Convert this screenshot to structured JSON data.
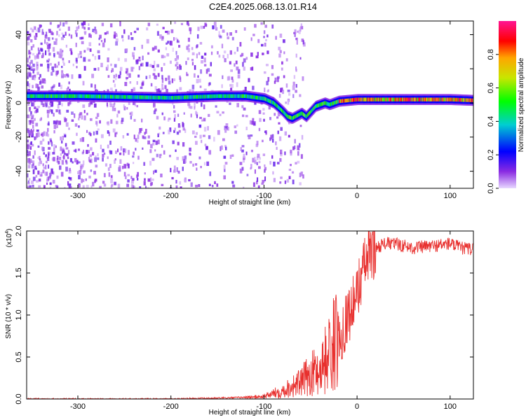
{
  "title": "C2E4.2025.068.13.01.R14",
  "colors": {
    "snr_line": "#e8302e",
    "colorbar_top": "#ff1493",
    "colorbar_low": "#e8d8ff"
  },
  "chart_data": [
    {
      "type": "heatmap",
      "xlabel": "Height of straight line (km)",
      "ylabel": "Frequency (Hz)",
      "xlim": [
        -355,
        125
      ],
      "ylim": [
        -50,
        48
      ],
      "xticks": [
        -300,
        -200,
        -100,
        0,
        100
      ],
      "yticks": [
        -40,
        -20,
        0,
        20,
        40
      ],
      "xtick_labels": [
        "-300",
        "-200",
        "-100",
        "0",
        "100"
      ],
      "ytick_labels": [
        "-40",
        "-20",
        "0",
        "20",
        "40"
      ],
      "ridge": {
        "x": [
          -350,
          -300,
          -250,
          -200,
          -150,
          -120,
          -100,
          -90,
          -80,
          -75,
          -70,
          -60,
          -55,
          -50,
          -45,
          -40,
          -35,
          -30,
          -25,
          -20,
          -10,
          0,
          50,
          100,
          125
        ],
        "y": [
          4,
          4,
          3.5,
          3,
          4,
          4,
          2.5,
          0,
          -5,
          -8,
          -9,
          -6,
          -8,
          -5,
          -2,
          -1,
          0,
          -1,
          0,
          1,
          1.5,
          2,
          2,
          2,
          1.5
        ]
      },
      "colorbar": {
        "label": "Normalized spectral amplitude",
        "range": [
          0.0,
          1.0
        ],
        "ticks": [
          0.0,
          0.2,
          0.4,
          0.6,
          0.8
        ],
        "tick_labels": [
          "0.0",
          "0.2",
          "0.4",
          "0.6",
          "0.8"
        ]
      }
    },
    {
      "type": "line",
      "xlabel": "Height of straight line (km)",
      "ylabel": "SNR (10 * v/v)",
      "y_multiplier": "(x10",
      "y_multiplier_exp": "4",
      "y_multiplier_close": ")",
      "xlim": [
        -355,
        125
      ],
      "ylim": [
        0.0,
        2.0
      ],
      "xticks": [
        -300,
        -200,
        -100,
        0,
        100
      ],
      "yticks": [
        0.0,
        0.5,
        1.0,
        1.5,
        2.0
      ],
      "xtick_labels": [
        "-300",
        "-200",
        "-100",
        "0",
        "100"
      ],
      "ytick_labels": [
        "0.0",
        "0.5",
        "1.0",
        "1.5",
        "2.0"
      ],
      "series": [
        {
          "x": [
            -355,
            -300,
            -250,
            -200,
            -150,
            -120,
            -100,
            -80,
            -70,
            -60,
            -50,
            -40,
            -35,
            -30,
            -25,
            -20,
            -18,
            -15,
            -10,
            -5,
            0,
            5,
            10,
            20,
            30,
            40,
            60,
            80,
            100,
            110,
            125
          ],
          "y": [
            0.0,
            0.0,
            0.0,
            0.0,
            0.01,
            0.02,
            0.03,
            0.1,
            0.15,
            0.2,
            0.3,
            0.35,
            0.45,
            0.55,
            0.65,
            0.7,
            0.75,
            0.85,
            1.0,
            1.1,
            1.25,
            1.5,
            1.65,
            1.8,
            1.85,
            1.85,
            1.8,
            1.82,
            1.85,
            1.8,
            1.78
          ]
        }
      ]
    }
  ]
}
